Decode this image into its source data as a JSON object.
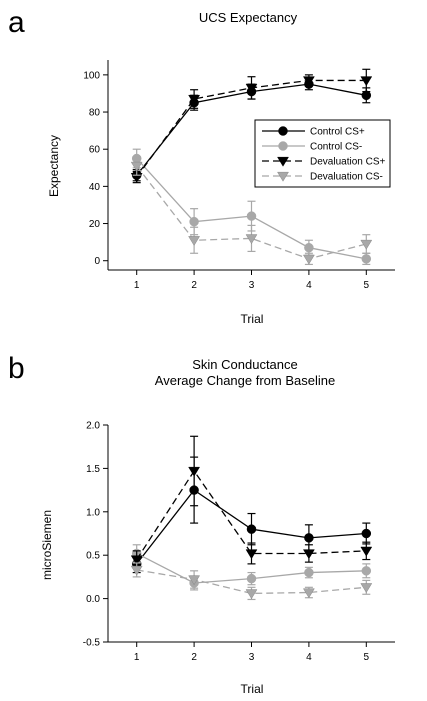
{
  "chart_data": [
    {
      "type": "line",
      "panel_label": "a",
      "title": "UCS Expectancy",
      "subtitle": "",
      "xlabel": "Trial",
      "ylabel": "Expectancy",
      "x": [
        1,
        2,
        3,
        4,
        5
      ],
      "xlim": [
        0.5,
        5.5
      ],
      "ylim": [
        -5,
        108
      ],
      "yticks": [
        0,
        20,
        40,
        60,
        80,
        100
      ],
      "xticks": [
        1,
        2,
        3,
        4,
        5
      ],
      "grid": false,
      "legend_placement": "right",
      "series": [
        {
          "name": "Control CS+",
          "values": [
            46,
            85,
            91,
            95,
            89
          ],
          "errors": [
            3,
            4,
            4,
            3,
            4
          ],
          "color": "#000000",
          "dash": "solid",
          "marker": "circle"
        },
        {
          "name": "Control CS-",
          "values": [
            55,
            21,
            24,
            7,
            1
          ],
          "errors": [
            5,
            7,
            8,
            4,
            3
          ],
          "color": "#a8a8a8",
          "dash": "solid",
          "marker": "circle"
        },
        {
          "name": "Devaluation CS+",
          "values": [
            45,
            87,
            93,
            97,
            97
          ],
          "errors": [
            3,
            5,
            6,
            3,
            6
          ],
          "color": "#000000",
          "dash": "dashed",
          "marker": "triangle-down"
        },
        {
          "name": "Devaluation CS-",
          "values": [
            51,
            11,
            12,
            1,
            9
          ],
          "errors": [
            5,
            7,
            7,
            3,
            5
          ],
          "color": "#a8a8a8",
          "dash": "dashed",
          "marker": "triangle-down"
        }
      ]
    },
    {
      "type": "line",
      "panel_label": "b",
      "title": "Skin Conductance",
      "subtitle": "Average Change from Baseline",
      "xlabel": "Trial",
      "ylabel": "microSiemen",
      "x": [
        1,
        2,
        3,
        4,
        5
      ],
      "xlim": [
        0.5,
        5.5
      ],
      "ylim": [
        -0.5,
        2.0
      ],
      "yticks": [
        -0.5,
        0.0,
        0.5,
        1.0,
        1.5,
        2.0
      ],
      "ytick_labels": [
        "-0.5",
        "0.0",
        "0.5",
        "1.0",
        "1.5",
        "2.0"
      ],
      "xticks": [
        1,
        2,
        3,
        4,
        5
      ],
      "grid": false,
      "series": [
        {
          "name": "Control CS+",
          "values": [
            0.4,
            1.25,
            0.8,
            0.7,
            0.75
          ],
          "errors": [
            0.1,
            0.38,
            0.18,
            0.15,
            0.12
          ],
          "color": "#000000",
          "dash": "solid",
          "marker": "circle"
        },
        {
          "name": "Control CS-",
          "values": [
            0.52,
            0.18,
            0.23,
            0.3,
            0.32
          ],
          "errors": [
            0.1,
            0.08,
            0.07,
            0.06,
            0.08
          ],
          "color": "#a8a8a8",
          "dash": "solid",
          "marker": "circle"
        },
        {
          "name": "Devaluation CS+",
          "values": [
            0.45,
            1.47,
            0.52,
            0.52,
            0.55
          ],
          "errors": [
            0.1,
            0.4,
            0.12,
            0.1,
            0.1
          ],
          "color": "#000000",
          "dash": "dashed",
          "marker": "triangle-down"
        },
        {
          "name": "Devaluation CS-",
          "values": [
            0.33,
            0.22,
            0.06,
            0.07,
            0.13
          ],
          "errors": [
            0.08,
            0.1,
            0.07,
            0.06,
            0.08
          ],
          "color": "#a8a8a8",
          "dash": "dashed",
          "marker": "triangle-down"
        }
      ]
    }
  ]
}
